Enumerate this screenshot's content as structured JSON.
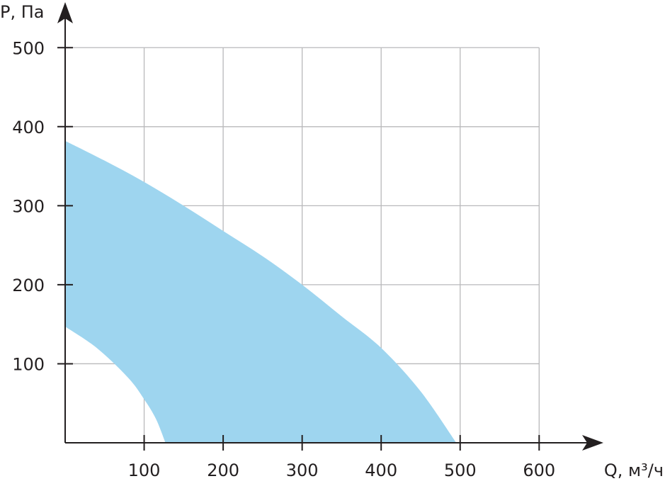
{
  "chart_data": {
    "type": "area",
    "title": "",
    "xlabel": "Q, м³/ч",
    "ylabel": "P, Па",
    "xlim": [
      0,
      600
    ],
    "ylim": [
      0,
      500
    ],
    "x_ticks": [
      100,
      200,
      300,
      400,
      500,
      600
    ],
    "y_ticks": [
      100,
      200,
      300,
      400,
      500
    ],
    "grid": true,
    "fill_color": "#9ed5ef",
    "series": [
      {
        "name": "",
        "role": "upper boundary",
        "x": [
          0,
          50,
          100,
          150,
          200,
          250,
          300,
          350,
          400,
          450,
          495
        ],
        "y": [
          382,
          357,
          330,
          300,
          268,
          236,
          200,
          160,
          120,
          65,
          0
        ]
      },
      {
        "name": "",
        "role": "lower boundary",
        "x": [
          0,
          40,
          80,
          100,
          115,
          127
        ],
        "y": [
          147,
          120,
          82,
          55,
          30,
          0
        ]
      }
    ]
  }
}
